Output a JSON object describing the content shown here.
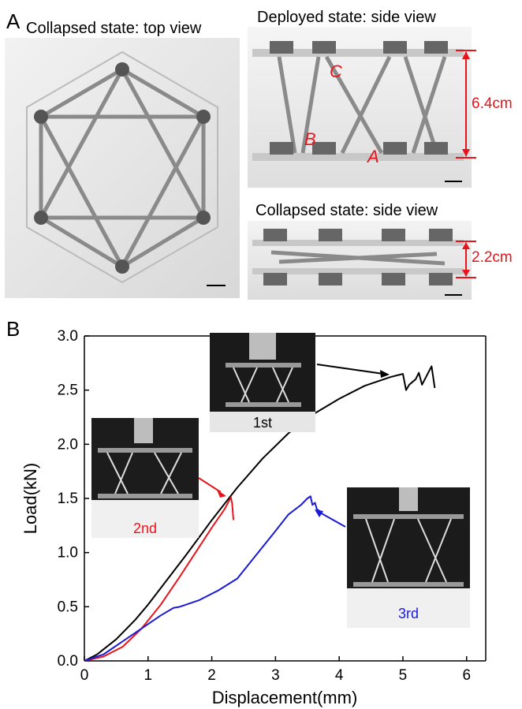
{
  "panel_a": {
    "letter": "A",
    "top_view_title": "Collapsed state: top view",
    "deployed_title": "Deployed state: side view",
    "collapsed_side_title": "Collapsed state: side view",
    "point_labels": [
      "C",
      "B",
      "A"
    ],
    "deployed_height": "6.4cm",
    "collapsed_height": "2.2cm"
  },
  "panel_b": {
    "letter": "B",
    "insets": [
      "1st",
      "2nd",
      "3rd"
    ]
  },
  "chart_data": {
    "type": "line",
    "xlabel": "Displacement(mm)",
    "ylabel": "Load(kN)",
    "xlim": [
      0,
      6.3
    ],
    "ylim": [
      0,
      3.0
    ],
    "xticks": [
      "0",
      "1",
      "2",
      "3",
      "4",
      "5",
      "6"
    ],
    "yticks": [
      "0.0",
      "0.5",
      "1.0",
      "1.5",
      "2.0",
      "2.5",
      "3.0"
    ],
    "grid": false,
    "series": [
      {
        "name": "1st",
        "color": "#000000",
        "x": [
          0,
          0.2,
          0.5,
          0.8,
          1.0,
          1.3,
          1.6,
          2.0,
          2.4,
          2.8,
          3.2,
          3.6,
          4.0,
          4.4,
          4.8,
          5.0,
          5.05,
          5.1,
          5.2,
          5.25,
          5.3,
          5.45,
          5.5
        ],
        "y": [
          0,
          0.06,
          0.2,
          0.38,
          0.52,
          0.75,
          0.98,
          1.3,
          1.6,
          1.87,
          2.1,
          2.28,
          2.42,
          2.54,
          2.62,
          2.65,
          2.5,
          2.55,
          2.6,
          2.66,
          2.55,
          2.72,
          2.52
        ]
      },
      {
        "name": "2nd",
        "color": "#e8141b",
        "x": [
          0,
          0.3,
          0.6,
          0.9,
          1.2,
          1.5,
          1.8,
          2.0,
          2.2,
          2.3,
          2.32,
          2.34
        ],
        "y": [
          0,
          0.04,
          0.13,
          0.3,
          0.52,
          0.78,
          1.05,
          1.23,
          1.4,
          1.51,
          1.45,
          1.3
        ]
      },
      {
        "name": "3rd",
        "color": "#1a1ad6",
        "x": [
          0,
          0.3,
          0.6,
          0.9,
          1.2,
          1.4,
          1.5,
          1.8,
          2.1,
          2.4,
          2.7,
          3.0,
          3.2,
          3.4,
          3.5,
          3.55,
          3.58,
          3.62,
          3.65,
          3.7
        ],
        "y": [
          0,
          0.06,
          0.18,
          0.3,
          0.42,
          0.49,
          0.5,
          0.56,
          0.65,
          0.76,
          0.98,
          1.2,
          1.35,
          1.44,
          1.5,
          1.52,
          1.44,
          1.46,
          1.4,
          1.38
        ]
      }
    ]
  }
}
